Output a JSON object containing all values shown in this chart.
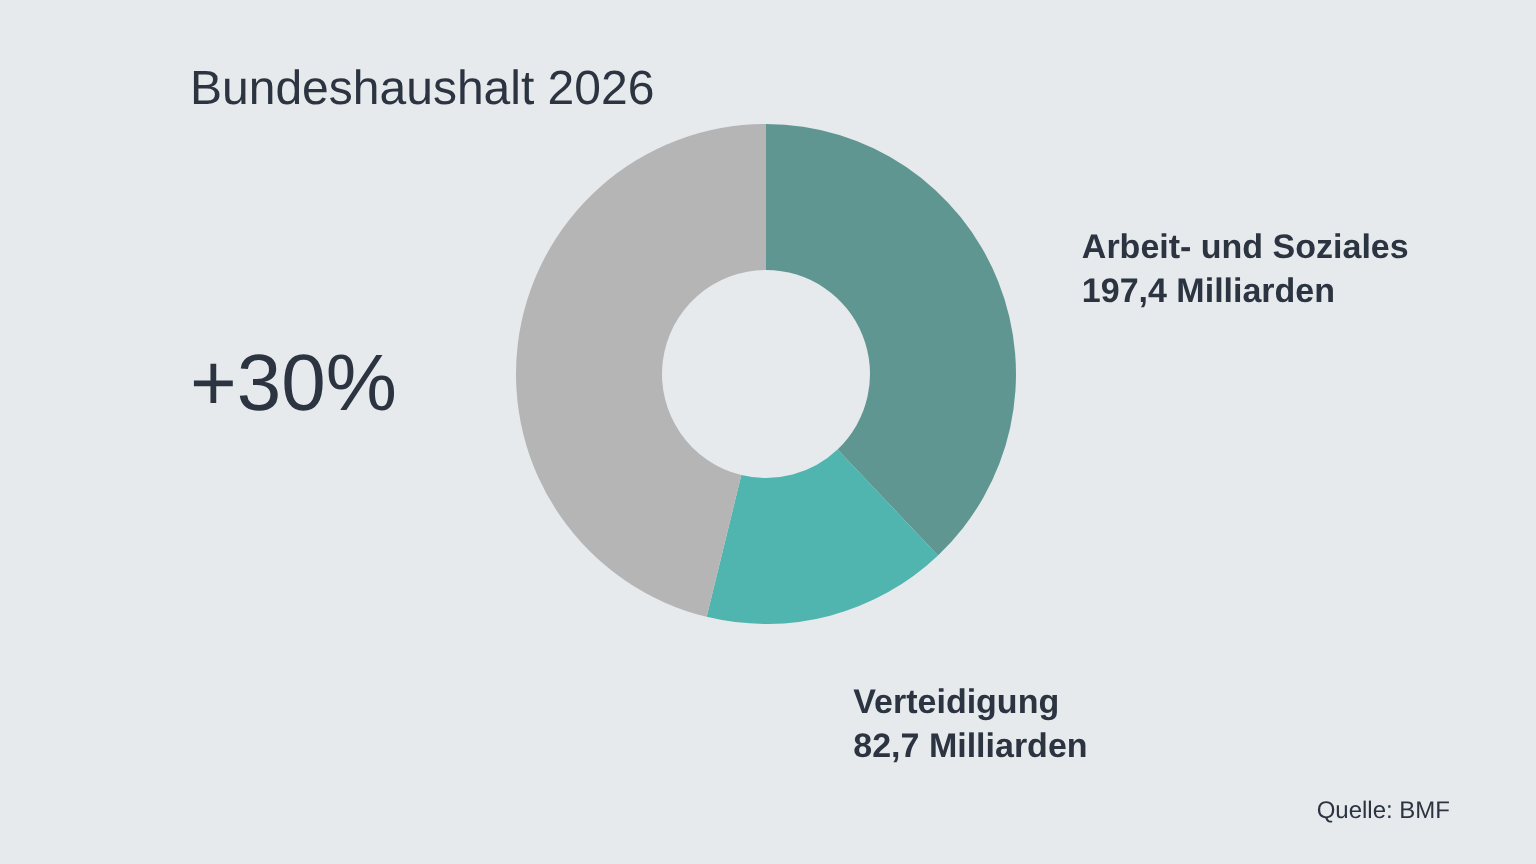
{
  "chart_data": {
    "type": "donut",
    "title": "Bundeshaushalt 2026",
    "categories": [
      "Arbeit- und Soziales",
      "Verteidigung",
      null
    ],
    "values": [
      197.4,
      82.7,
      240.4
    ],
    "value_labels": [
      "197,4 Milliarden",
      "82,7 Milliarden",
      null
    ],
    "colors": [
      "#5f9692",
      "#4fb5ae",
      "#b5b5b5"
    ],
    "annotations": [
      "+30%",
      "Quelle: BMF"
    ]
  }
}
